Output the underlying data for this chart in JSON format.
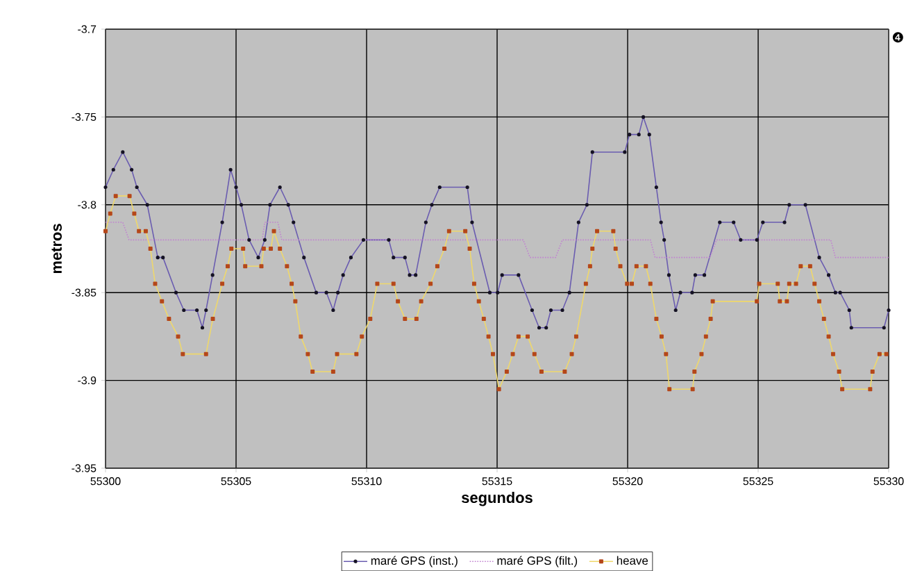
{
  "chart_data": {
    "type": "line",
    "xlabel": "segundos",
    "ylabel": "metros",
    "xlim": [
      55300,
      55330
    ],
    "xticks": [
      55300,
      55305,
      55310,
      55315,
      55320,
      55325,
      55330
    ],
    "ylim": [
      -3.95,
      -3.7
    ],
    "yticks": [
      -3.95,
      -3.9,
      -3.85,
      -3.8,
      -3.75,
      -3.7
    ],
    "grid": true,
    "legend": "bottom",
    "annotations": [
      "❹"
    ],
    "series": [
      {
        "name": "maré GPS (inst.)",
        "color": "#6a5cb0",
        "marker": "circle",
        "line_style": "solid",
        "x": [
          55300.0,
          55300.3,
          55300.66,
          55301.0,
          55301.2,
          55301.6,
          55302.0,
          55302.2,
          55302.7,
          55303.0,
          55303.5,
          55303.71,
          55303.85,
          55304.1,
          55304.47,
          55304.79,
          55305.0,
          55305.2,
          55305.5,
          55305.85,
          55306.1,
          55306.3,
          55306.68,
          55307.0,
          55307.2,
          55307.6,
          55308.07,
          55308.46,
          55308.72,
          55308.9,
          55309.1,
          55309.4,
          55309.88,
          55310.85,
          55311.03,
          55311.47,
          55311.65,
          55311.88,
          55312.27,
          55312.5,
          55312.8,
          55313.86,
          55314.04,
          55314.72,
          55315.02,
          55315.19,
          55315.82,
          55316.34,
          55316.61,
          55316.88,
          55317.06,
          55317.5,
          55317.77,
          55318.12,
          55318.44,
          55318.65,
          55319.89,
          55320.07,
          55320.43,
          55320.6,
          55320.83,
          55321.1,
          55321.28,
          55321.4,
          55321.58,
          55321.84,
          55322.02,
          55322.47,
          55322.59,
          55322.94,
          55323.53,
          55324.06,
          55324.33,
          55324.95,
          55325.18,
          55326.01,
          55326.19,
          55326.81,
          55327.34,
          55327.7,
          55327.96,
          55328.14,
          55328.49,
          55328.57,
          55329.82,
          55330.0
        ],
        "values": [
          -3.79,
          -3.78,
          -3.77,
          -3.78,
          -3.79,
          -3.8,
          -3.83,
          -3.83,
          -3.85,
          -3.86,
          -3.86,
          -3.87,
          -3.86,
          -3.84,
          -3.81,
          -3.78,
          -3.79,
          -3.8,
          -3.82,
          -3.83,
          -3.82,
          -3.8,
          -3.79,
          -3.8,
          -3.81,
          -3.83,
          -3.85,
          -3.85,
          -3.86,
          -3.85,
          -3.84,
          -3.83,
          -3.82,
          -3.82,
          -3.83,
          -3.83,
          -3.84,
          -3.84,
          -3.81,
          -3.8,
          -3.79,
          -3.79,
          -3.81,
          -3.85,
          -3.85,
          -3.84,
          -3.84,
          -3.86,
          -3.87,
          -3.87,
          -3.86,
          -3.86,
          -3.85,
          -3.81,
          -3.8,
          -3.77,
          -3.77,
          -3.76,
          -3.76,
          -3.75,
          -3.76,
          -3.79,
          -3.81,
          -3.82,
          -3.84,
          -3.86,
          -3.85,
          -3.85,
          -3.84,
          -3.84,
          -3.81,
          -3.81,
          -3.82,
          -3.82,
          -3.81,
          -3.81,
          -3.8,
          -3.8,
          -3.83,
          -3.84,
          -3.85,
          -3.85,
          -3.86,
          -3.87,
          -3.87,
          -3.86
        ]
      },
      {
        "name": "maré GPS (filt.)",
        "color": "#c080d0",
        "marker": "none",
        "line_style": "dotted",
        "x": [
          55300.0,
          55300.66,
          55300.9,
          55306.0,
          55306.1,
          55306.6,
          55306.75,
          55316.0,
          55316.26,
          55317.24,
          55317.5,
          55320.87,
          55321.05,
          55323.15,
          55323.41,
          55327.78,
          55327.96,
          55330.0
        ],
        "values": [
          -3.81,
          -3.81,
          -3.82,
          -3.82,
          -3.81,
          -3.81,
          -3.82,
          -3.82,
          -3.83,
          -3.83,
          -3.82,
          -3.82,
          -3.83,
          -3.83,
          -3.82,
          -3.82,
          -3.83,
          -3.83
        ]
      },
      {
        "name": "heave",
        "color": "#b5471a",
        "marker": "square",
        "line_style": "solid",
        "x": [
          55300.0,
          55300.18,
          55300.39,
          55300.92,
          55301.1,
          55301.28,
          55301.54,
          55301.72,
          55301.9,
          55302.16,
          55302.43,
          55302.78,
          55302.96,
          55303.85,
          55304.11,
          55304.47,
          55304.68,
          55304.82,
          55305.27,
          55305.35,
          55305.97,
          55306.06,
          55306.33,
          55306.45,
          55306.68,
          55306.95,
          55307.13,
          55307.27,
          55307.48,
          55307.75,
          55307.93,
          55308.72,
          55308.87,
          55309.61,
          55309.82,
          55310.14,
          55310.41,
          55311.03,
          55311.2,
          55311.47,
          55311.91,
          55312.09,
          55312.45,
          55312.71,
          55312.98,
          55313.16,
          55313.78,
          55313.95,
          55314.12,
          55314.3,
          55314.49,
          55314.67,
          55314.84,
          55315.07,
          55315.37,
          55315.6,
          55315.82,
          55316.17,
          55316.43,
          55316.7,
          55317.59,
          55317.86,
          55318.03,
          55318.4,
          55318.56,
          55318.65,
          55318.83,
          55319.45,
          55319.54,
          55319.72,
          55319.98,
          55320.16,
          55320.34,
          55320.7,
          55320.87,
          55321.1,
          55321.3,
          55321.47,
          55321.6,
          55322.49,
          55322.56,
          55322.83,
          55323.0,
          55323.18,
          55323.26,
          55324.95,
          55325.04,
          55325.75,
          55325.83,
          55326.1,
          55326.19,
          55326.45,
          55326.63,
          55326.99,
          55327.16,
          55327.34,
          55327.52,
          55327.7,
          55327.87,
          55328.1,
          55328.22,
          55329.29,
          55329.38,
          55329.65,
          55329.91
        ],
        "values": [
          -3.815,
          -3.805,
          -3.795,
          -3.795,
          -3.805,
          -3.815,
          -3.815,
          -3.825,
          -3.845,
          -3.855,
          -3.865,
          -3.875,
          -3.885,
          -3.885,
          -3.865,
          -3.845,
          -3.835,
          -3.825,
          -3.825,
          -3.835,
          -3.835,
          -3.825,
          -3.825,
          -3.815,
          -3.825,
          -3.835,
          -3.845,
          -3.855,
          -3.875,
          -3.885,
          -3.895,
          -3.895,
          -3.885,
          -3.885,
          -3.875,
          -3.865,
          -3.845,
          -3.845,
          -3.855,
          -3.865,
          -3.865,
          -3.855,
          -3.845,
          -3.835,
          -3.825,
          -3.815,
          -3.815,
          -3.825,
          -3.845,
          -3.855,
          -3.865,
          -3.875,
          -3.885,
          -3.905,
          -3.895,
          -3.885,
          -3.875,
          -3.875,
          -3.885,
          -3.895,
          -3.895,
          -3.885,
          -3.875,
          -3.845,
          -3.835,
          -3.825,
          -3.815,
          -3.815,
          -3.825,
          -3.835,
          -3.845,
          -3.845,
          -3.835,
          -3.835,
          -3.845,
          -3.865,
          -3.875,
          -3.885,
          -3.905,
          -3.905,
          -3.895,
          -3.885,
          -3.875,
          -3.865,
          -3.855,
          -3.855,
          -3.845,
          -3.845,
          -3.855,
          -3.855,
          -3.845,
          -3.845,
          -3.835,
          -3.835,
          -3.845,
          -3.855,
          -3.865,
          -3.875,
          -3.885,
          -3.895,
          -3.905,
          -3.905,
          -3.895,
          -3.885,
          -3.885
        ]
      }
    ]
  }
}
